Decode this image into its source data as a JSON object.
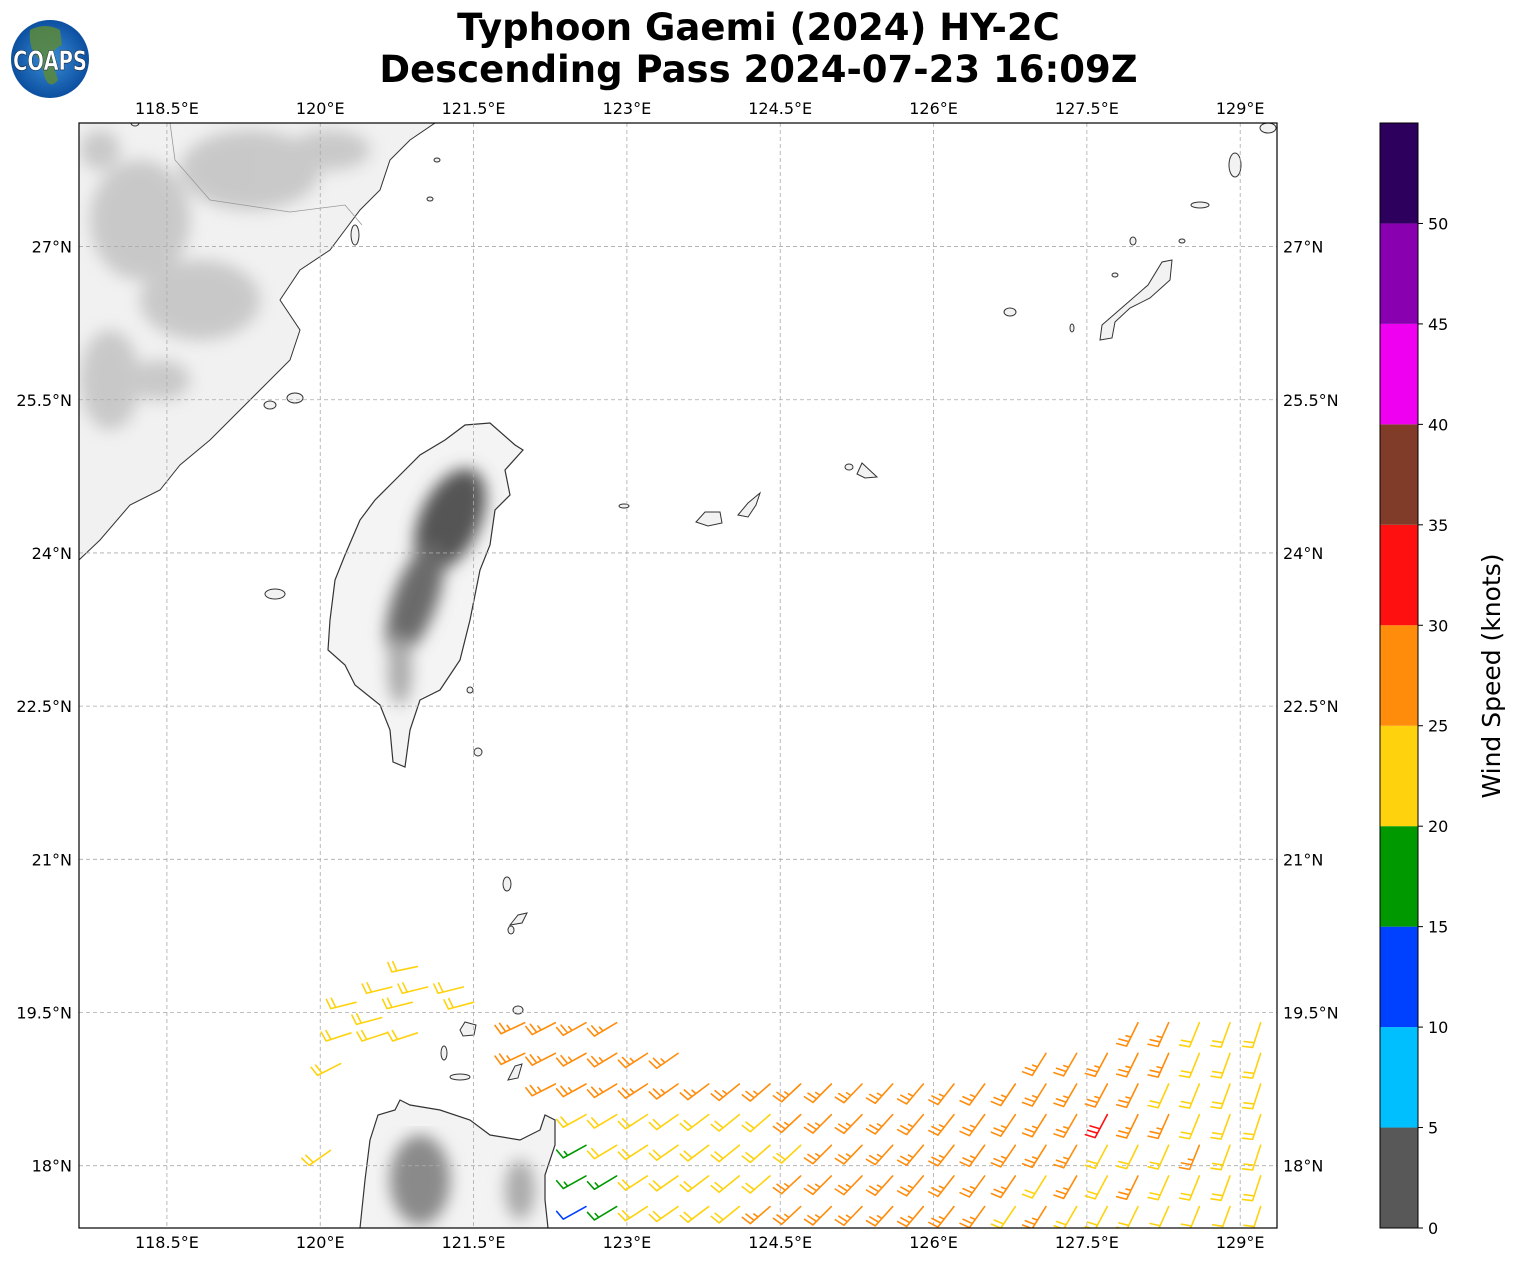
{
  "title": {
    "line1": "Typhoon Gaemi (2024) HY-2C",
    "line2": "Descending Pass 2024-07-23 16:09Z"
  },
  "logo": {
    "text": "COAPS"
  },
  "map": {
    "extent": {
      "lon": [
        117.64,
        129.36
      ],
      "lat": [
        17.39,
        28.21
      ]
    },
    "lon_ticks": [
      118.5,
      120,
      121.5,
      123,
      124.5,
      126,
      127.5,
      129
    ],
    "lon_labels": [
      "118.5°E",
      "120°E",
      "121.5°E",
      "123°E",
      "124.5°E",
      "126°E",
      "127.5°E",
      "129°E"
    ],
    "lat_ticks": [
      18,
      19.5,
      21,
      22.5,
      24,
      25.5,
      27
    ],
    "lat_labels": [
      "18°N",
      "19.5°N",
      "21°N",
      "22.5°N",
      "24°N",
      "25.5°N",
      "27°N"
    ],
    "gridlines": true,
    "terrain": "grayscale"
  },
  "colorbar": {
    "label": "Wind Speed (knots)",
    "bounds": [
      0,
      5,
      10,
      15,
      20,
      25,
      30,
      35,
      40,
      45,
      50,
      55
    ],
    "ticks": [
      0,
      5,
      10,
      15,
      20,
      25,
      30,
      35,
      40,
      45,
      50
    ],
    "colors": [
      "#585858",
      "#00bfff",
      "#0040ff",
      "#009900",
      "#ffd20e",
      "#ff8c0a",
      "#ff1010",
      "#803c28",
      "#f000f0",
      "#8800b0",
      "#2e005e"
    ]
  },
  "wind_barbs_units": "knots",
  "wind_barbs": [
    {
      "lat": 19.95,
      "barbs": [
        [
          120.95,
          22,
          258
        ]
      ]
    },
    {
      "lat": 19.75,
      "barbs": [
        [
          120.7,
          22,
          256
        ],
        [
          121.05,
          22,
          256
        ],
        [
          121.4,
          22,
          256
        ]
      ]
    },
    {
      "lat": 19.6,
      "barbs": [
        [
          120.35,
          22,
          256
        ],
        [
          120.9,
          22,
          256
        ],
        [
          121.5,
          22,
          255
        ]
      ]
    },
    {
      "lat": 19.45,
      "barbs": [
        [
          120.6,
          22,
          255
        ]
      ]
    },
    {
      "lat": 19.3,
      "barbs": [
        [
          120.3,
          22,
          252
        ],
        [
          120.65,
          22,
          252
        ],
        [
          120.95,
          22,
          252
        ]
      ]
    },
    {
      "lat": 19.0,
      "barbs": [
        [
          120.2,
          22,
          243
        ]
      ]
    },
    {
      "lat": 18.15,
      "barbs": [
        [
          120.1,
          22,
          235
        ]
      ]
    },
    {
      "lat": 19.4,
      "barbs": [
        [
          122.0,
          27,
          245
        ],
        [
          122.3,
          27,
          243
        ],
        [
          122.6,
          27,
          241
        ],
        [
          122.9,
          27,
          239
        ],
        [
          128.0,
          27,
          206
        ],
        [
          128.3,
          27,
          204
        ],
        [
          128.6,
          22,
          202
        ],
        [
          128.9,
          22,
          200
        ],
        [
          129.2,
          22,
          198
        ]
      ]
    },
    {
      "lat": 19.1,
      "barbs": [
        [
          122.0,
          27,
          245
        ],
        [
          122.3,
          27,
          243
        ],
        [
          122.6,
          27,
          241
        ],
        [
          122.9,
          27,
          239
        ],
        [
          123.2,
          27,
          237
        ],
        [
          123.5,
          27,
          235
        ],
        [
          127.1,
          27,
          212
        ],
        [
          127.4,
          27,
          210
        ],
        [
          127.7,
          27,
          208
        ],
        [
          128.0,
          27,
          206
        ],
        [
          128.3,
          27,
          204
        ],
        [
          128.6,
          22,
          202
        ],
        [
          128.9,
          22,
          200
        ],
        [
          129.2,
          22,
          198
        ]
      ]
    },
    {
      "lat": 18.8,
      "barbs": [
        [
          122.3,
          27,
          243
        ],
        [
          122.6,
          27,
          241
        ],
        [
          122.9,
          27,
          239
        ],
        [
          123.2,
          27,
          237
        ],
        [
          123.5,
          27,
          235
        ],
        [
          123.8,
          27,
          233
        ],
        [
          124.1,
          27,
          231
        ],
        [
          124.4,
          27,
          229
        ],
        [
          124.7,
          27,
          227
        ],
        [
          125.0,
          27,
          225
        ],
        [
          125.3,
          27,
          224
        ],
        [
          125.6,
          27,
          222
        ],
        [
          125.9,
          27,
          220
        ],
        [
          126.2,
          27,
          218
        ],
        [
          126.5,
          27,
          216
        ],
        [
          126.8,
          27,
          214
        ],
        [
          127.1,
          27,
          212
        ],
        [
          127.4,
          27,
          210
        ],
        [
          127.7,
          27,
          208
        ],
        [
          128.0,
          27,
          206
        ],
        [
          128.3,
          22,
          204
        ],
        [
          128.6,
          22,
          202
        ],
        [
          128.9,
          22,
          200
        ],
        [
          129.2,
          22,
          198
        ]
      ]
    },
    {
      "lat": 18.5,
      "barbs": [
        [
          122.6,
          22,
          241
        ],
        [
          122.9,
          22,
          239
        ],
        [
          123.2,
          22,
          237
        ],
        [
          123.5,
          22,
          235
        ],
        [
          123.8,
          22,
          233
        ],
        [
          124.1,
          22,
          231
        ],
        [
          124.4,
          22,
          229
        ],
        [
          124.7,
          27,
          227
        ],
        [
          125.0,
          27,
          225
        ],
        [
          125.3,
          27,
          224
        ],
        [
          125.6,
          27,
          222
        ],
        [
          125.9,
          27,
          220
        ],
        [
          126.2,
          27,
          218
        ],
        [
          126.5,
          27,
          216
        ],
        [
          126.8,
          27,
          214
        ],
        [
          127.1,
          27,
          212
        ],
        [
          127.4,
          27,
          210
        ],
        [
          127.7,
          32,
          208
        ],
        [
          128.0,
          27,
          206
        ],
        [
          128.3,
          27,
          204
        ],
        [
          128.6,
          22,
          202
        ],
        [
          128.9,
          22,
          200
        ],
        [
          129.2,
          22,
          198
        ]
      ]
    },
    {
      "lat": 18.2,
      "barbs": [
        [
          122.6,
          17,
          241
        ],
        [
          122.9,
          22,
          239
        ],
        [
          123.2,
          22,
          237
        ],
        [
          123.5,
          22,
          235
        ],
        [
          123.8,
          22,
          233
        ],
        [
          124.1,
          22,
          231
        ],
        [
          124.4,
          22,
          229
        ],
        [
          124.7,
          22,
          227
        ],
        [
          125.0,
          27,
          225
        ],
        [
          125.3,
          27,
          224
        ],
        [
          125.6,
          27,
          222
        ],
        [
          125.9,
          27,
          220
        ],
        [
          126.2,
          27,
          218
        ],
        [
          126.5,
          27,
          216
        ],
        [
          126.8,
          27,
          214
        ],
        [
          127.1,
          27,
          212
        ],
        [
          127.4,
          27,
          210
        ],
        [
          127.7,
          22,
          208
        ],
        [
          128.0,
          22,
          206
        ],
        [
          128.3,
          22,
          204
        ],
        [
          128.6,
          27,
          202
        ],
        [
          128.9,
          22,
          200
        ],
        [
          129.2,
          22,
          198
        ]
      ]
    },
    {
      "lat": 17.9,
      "barbs": [
        [
          122.6,
          17,
          241
        ],
        [
          122.9,
          17,
          239
        ],
        [
          123.2,
          22,
          237
        ],
        [
          123.5,
          22,
          235
        ],
        [
          123.8,
          22,
          233
        ],
        [
          124.1,
          22,
          231
        ],
        [
          124.4,
          22,
          229
        ],
        [
          124.7,
          27,
          227
        ],
        [
          125.0,
          27,
          225
        ],
        [
          125.3,
          27,
          224
        ],
        [
          125.6,
          27,
          222
        ],
        [
          125.9,
          27,
          220
        ],
        [
          126.2,
          27,
          218
        ],
        [
          126.5,
          27,
          216
        ],
        [
          126.8,
          27,
          214
        ],
        [
          127.1,
          22,
          212
        ],
        [
          127.4,
          27,
          210
        ],
        [
          127.7,
          22,
          208
        ],
        [
          128.0,
          27,
          206
        ],
        [
          128.3,
          22,
          204
        ],
        [
          128.6,
          22,
          202
        ],
        [
          128.9,
          22,
          200
        ],
        [
          129.2,
          22,
          198
        ]
      ]
    },
    {
      "lat": 17.6,
      "barbs": [
        [
          122.6,
          12,
          241
        ],
        [
          122.9,
          17,
          239
        ],
        [
          123.2,
          22,
          237
        ],
        [
          123.5,
          22,
          235
        ],
        [
          123.8,
          22,
          233
        ],
        [
          124.1,
          22,
          231
        ],
        [
          124.4,
          27,
          229
        ],
        [
          124.7,
          27,
          227
        ],
        [
          125.0,
          27,
          225
        ],
        [
          125.3,
          27,
          224
        ],
        [
          125.6,
          27,
          222
        ],
        [
          125.9,
          27,
          220
        ],
        [
          126.2,
          27,
          218
        ],
        [
          126.5,
          27,
          216
        ],
        [
          126.8,
          22,
          214
        ],
        [
          127.1,
          27,
          212
        ],
        [
          127.4,
          22,
          210
        ],
        [
          127.7,
          22,
          208
        ],
        [
          128.0,
          22,
          206
        ],
        [
          128.3,
          22,
          204
        ],
        [
          128.6,
          22,
          202
        ],
        [
          128.9,
          22,
          200
        ],
        [
          129.2,
          22,
          198
        ]
      ]
    }
  ]
}
